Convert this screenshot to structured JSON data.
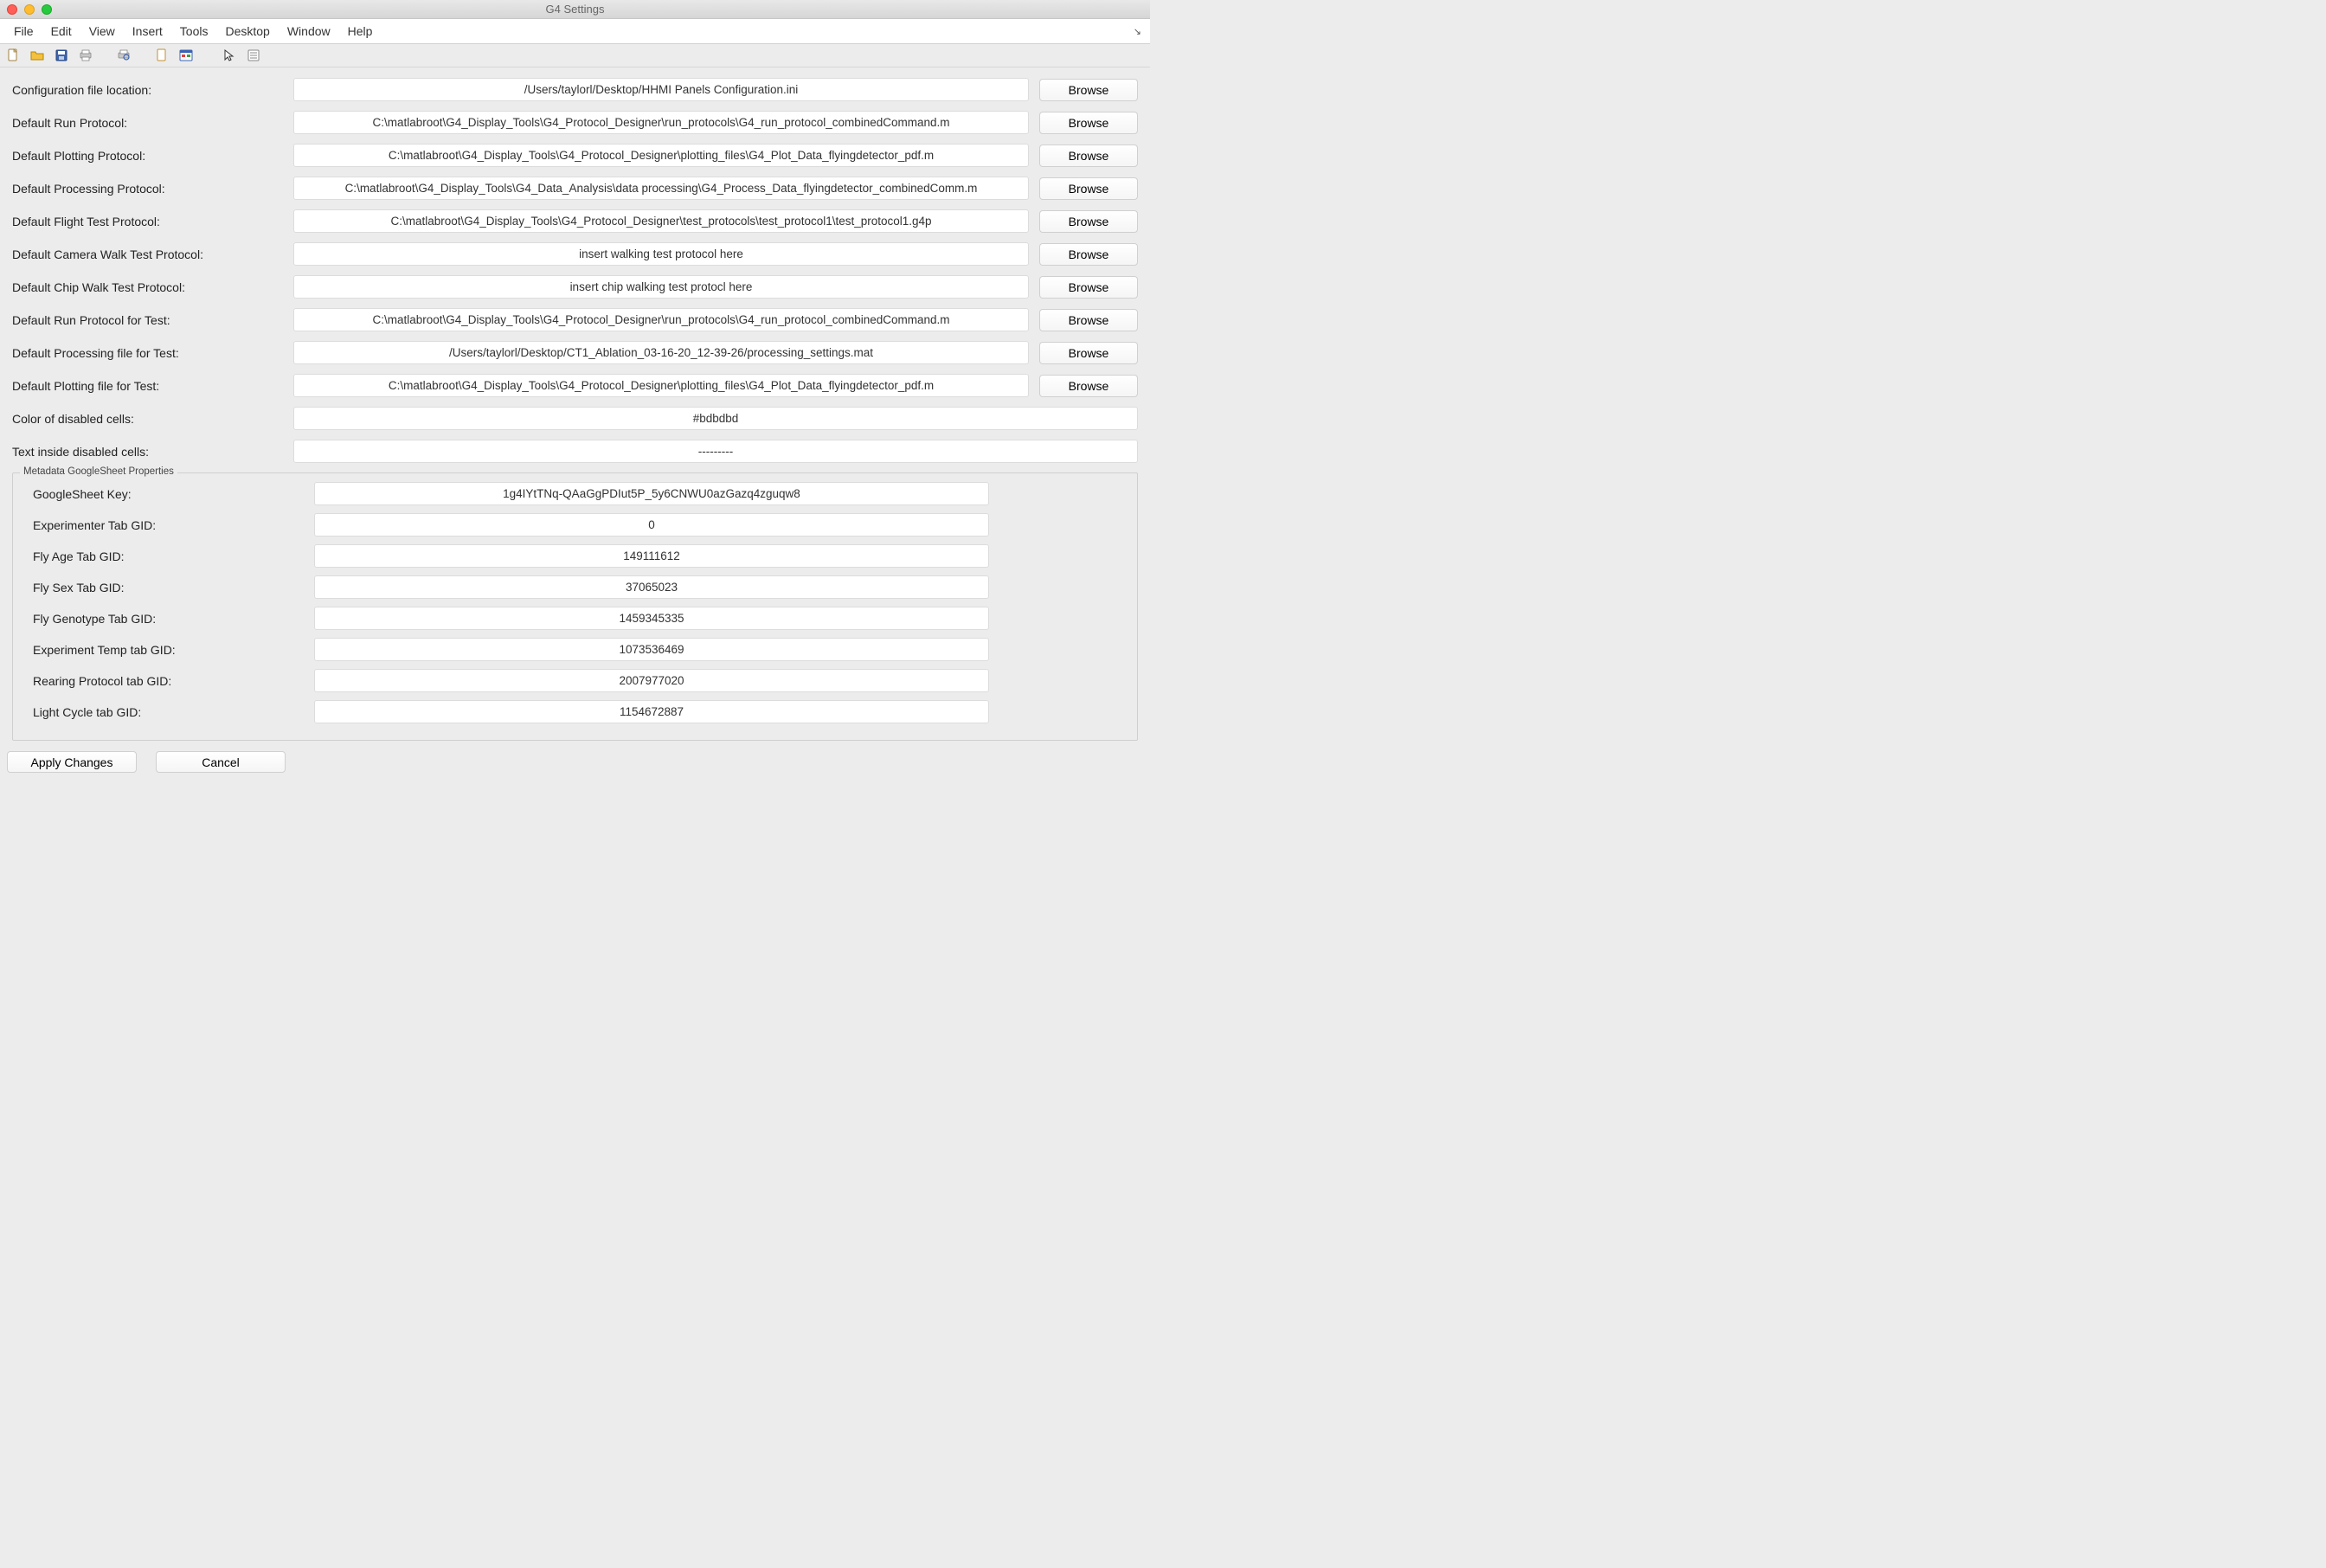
{
  "window": {
    "title": "G4 Settings"
  },
  "menu": {
    "items": [
      "File",
      "Edit",
      "View",
      "Insert",
      "Tools",
      "Desktop",
      "Window",
      "Help"
    ]
  },
  "rows": [
    {
      "label": "Configuration file location:",
      "value": "/Users/taylorl/Desktop/HHMI Panels Configuration.ini",
      "browse": true
    },
    {
      "label": "Default Run Protocol:",
      "value": "C:\\matlabroot\\G4_Display_Tools\\G4_Protocol_Designer\\run_protocols\\G4_run_protocol_combinedCommand.m",
      "browse": true
    },
    {
      "label": "Default Plotting Protocol:",
      "value": "C:\\matlabroot\\G4_Display_Tools\\G4_Protocol_Designer\\plotting_files\\G4_Plot_Data_flyingdetector_pdf.m",
      "browse": true
    },
    {
      "label": "Default Processing Protocol:",
      "value": "C:\\matlabroot\\G4_Display_Tools\\G4_Data_Analysis\\data processing\\G4_Process_Data_flyingdetector_combinedComm.m",
      "browse": true
    },
    {
      "label": "Default Flight Test Protocol:",
      "value": "C:\\matlabroot\\G4_Display_Tools\\G4_Protocol_Designer\\test_protocols\\test_protocol1\\test_protocol1.g4p",
      "browse": true
    },
    {
      "label": "Default Camera Walk Test Protocol:",
      "value": "insert walking test protocol here",
      "browse": true
    },
    {
      "label": "Default Chip Walk Test Protocol:",
      "value": "insert chip walking test protocl here",
      "browse": true
    },
    {
      "label": "Default Run Protocol for Test:",
      "value": "C:\\matlabroot\\G4_Display_Tools\\G4_Protocol_Designer\\run_protocols\\G4_run_protocol_combinedCommand.m",
      "browse": true
    },
    {
      "label": "Default Processing file for Test:",
      "value": "/Users/taylorl/Desktop/CT1_Ablation_03-16-20_12-39-26/processing_settings.mat",
      "browse": true
    },
    {
      "label": "Default Plotting file for Test:",
      "value": "C:\\matlabroot\\G4_Display_Tools\\G4_Protocol_Designer\\plotting_files\\G4_Plot_Data_flyingdetector_pdf.m",
      "browse": true
    },
    {
      "label": "Color of disabled cells:",
      "value": "#bdbdbd",
      "browse": false
    },
    {
      "label": "Text inside disabled cells:",
      "value": "---------",
      "browse": false
    }
  ],
  "metadata": {
    "legend": "Metadata GoogleSheet Properties",
    "rows": [
      {
        "label": "GoogleSheet Key:",
        "value": "1g4IYtTNq-QAaGgPDIut5P_5y6CNWU0azGazq4zguqw8"
      },
      {
        "label": "Experimenter Tab GID:",
        "value": "0"
      },
      {
        "label": "Fly Age Tab GID:",
        "value": "149111612"
      },
      {
        "label": "Fly Sex Tab GID:",
        "value": "37065023"
      },
      {
        "label": "Fly Genotype Tab GID:",
        "value": "1459345335"
      },
      {
        "label": "Experiment Temp tab GID:",
        "value": "1073536469"
      },
      {
        "label": "Rearing Protocol tab GID:",
        "value": "2007977020"
      },
      {
        "label": "Light Cycle tab GID:",
        "value": "1154672887"
      }
    ]
  },
  "buttons": {
    "browse": "Browse",
    "apply": "Apply Changes",
    "cancel": "Cancel"
  }
}
